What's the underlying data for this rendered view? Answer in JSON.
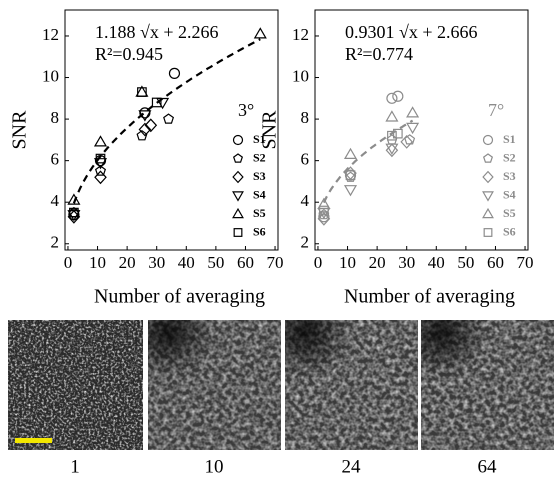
{
  "chart_data": [
    {
      "type": "scatter",
      "x_label": "Number of averaging",
      "y_label": "SNR",
      "fit": {
        "a": 1.188,
        "b": 2.266,
        "label": "1.188 √x + 2.266",
        "range": [
          2,
          65
        ]
      },
      "r2_label": "R²=0.945",
      "legend_title": "3°",
      "color": "#000000",
      "xlim": [
        -1,
        71
      ],
      "ylim": [
        1.7,
        13.25
      ],
      "xticks": [
        0,
        10,
        20,
        30,
        40,
        50,
        60,
        70
      ],
      "yticks": [
        2,
        4,
        6,
        8,
        10,
        12
      ],
      "series": [
        {
          "name": "S1",
          "x": [
            2,
            11,
            26,
            36
          ],
          "values": [
            3.4,
            6.0,
            8.3,
            10.2
          ]
        },
        {
          "name": "S2",
          "x": [
            2,
            11,
            25,
            34
          ],
          "values": [
            3.5,
            5.5,
            7.2,
            8.0
          ]
        },
        {
          "name": "S3",
          "x": [
            2,
            11,
            26,
            28
          ],
          "values": [
            3.3,
            5.2,
            7.5,
            7.7
          ]
        },
        {
          "name": "S4",
          "x": [
            2,
            11,
            26,
            32
          ],
          "values": [
            3.4,
            5.9,
            8.2,
            8.8
          ]
        },
        {
          "name": "S5",
          "x": [
            2,
            11,
            25,
            65
          ],
          "values": [
            4.1,
            6.9,
            9.3,
            12.1
          ]
        },
        {
          "name": "S6",
          "x": [
            2,
            11,
            25,
            30
          ],
          "values": [
            3.5,
            6.1,
            9.3,
            8.8
          ]
        }
      ]
    },
    {
      "type": "scatter",
      "x_label": "Number of averaging",
      "y_label": "SNR",
      "fit": {
        "a": 0.9301,
        "b": 2.666,
        "label": "0.9301 √x + 2.666",
        "range": [
          2,
          32
        ]
      },
      "r2_label": "R²=0.774",
      "legend_title": "7°",
      "color": "#8c8c8c",
      "xlim": [
        -1,
        71
      ],
      "ylim": [
        1.7,
        13.25
      ],
      "xticks": [
        0,
        10,
        20,
        30,
        40,
        50,
        60,
        70
      ],
      "yticks": [
        2,
        4,
        6,
        8,
        10,
        12
      ],
      "series": [
        {
          "name": "S1",
          "x": [
            2,
            11,
            25,
            27
          ],
          "values": [
            3.3,
            5.3,
            9.0,
            9.1
          ]
        },
        {
          "name": "S2",
          "x": [
            2,
            11,
            25,
            31
          ],
          "values": [
            3.4,
            5.2,
            7.0,
            7.0
          ]
        },
        {
          "name": "S3",
          "x": [
            2,
            11,
            25,
            30
          ],
          "values": [
            3.2,
            5.4,
            6.5,
            6.9
          ]
        },
        {
          "name": "S4",
          "x": [
            2,
            11,
            25,
            32
          ],
          "values": [
            3.5,
            4.6,
            6.6,
            7.6
          ]
        },
        {
          "name": "S5",
          "x": [
            2,
            11,
            25,
            32
          ],
          "values": [
            3.9,
            6.3,
            8.1,
            8.3
          ]
        },
        {
          "name": "S6",
          "x": [
            2,
            11,
            25,
            27
          ],
          "values": [
            3.6,
            5.3,
            7.2,
            7.3
          ]
        }
      ]
    }
  ],
  "images": {
    "labels": [
      "1",
      "10",
      "24",
      "64"
    ]
  }
}
